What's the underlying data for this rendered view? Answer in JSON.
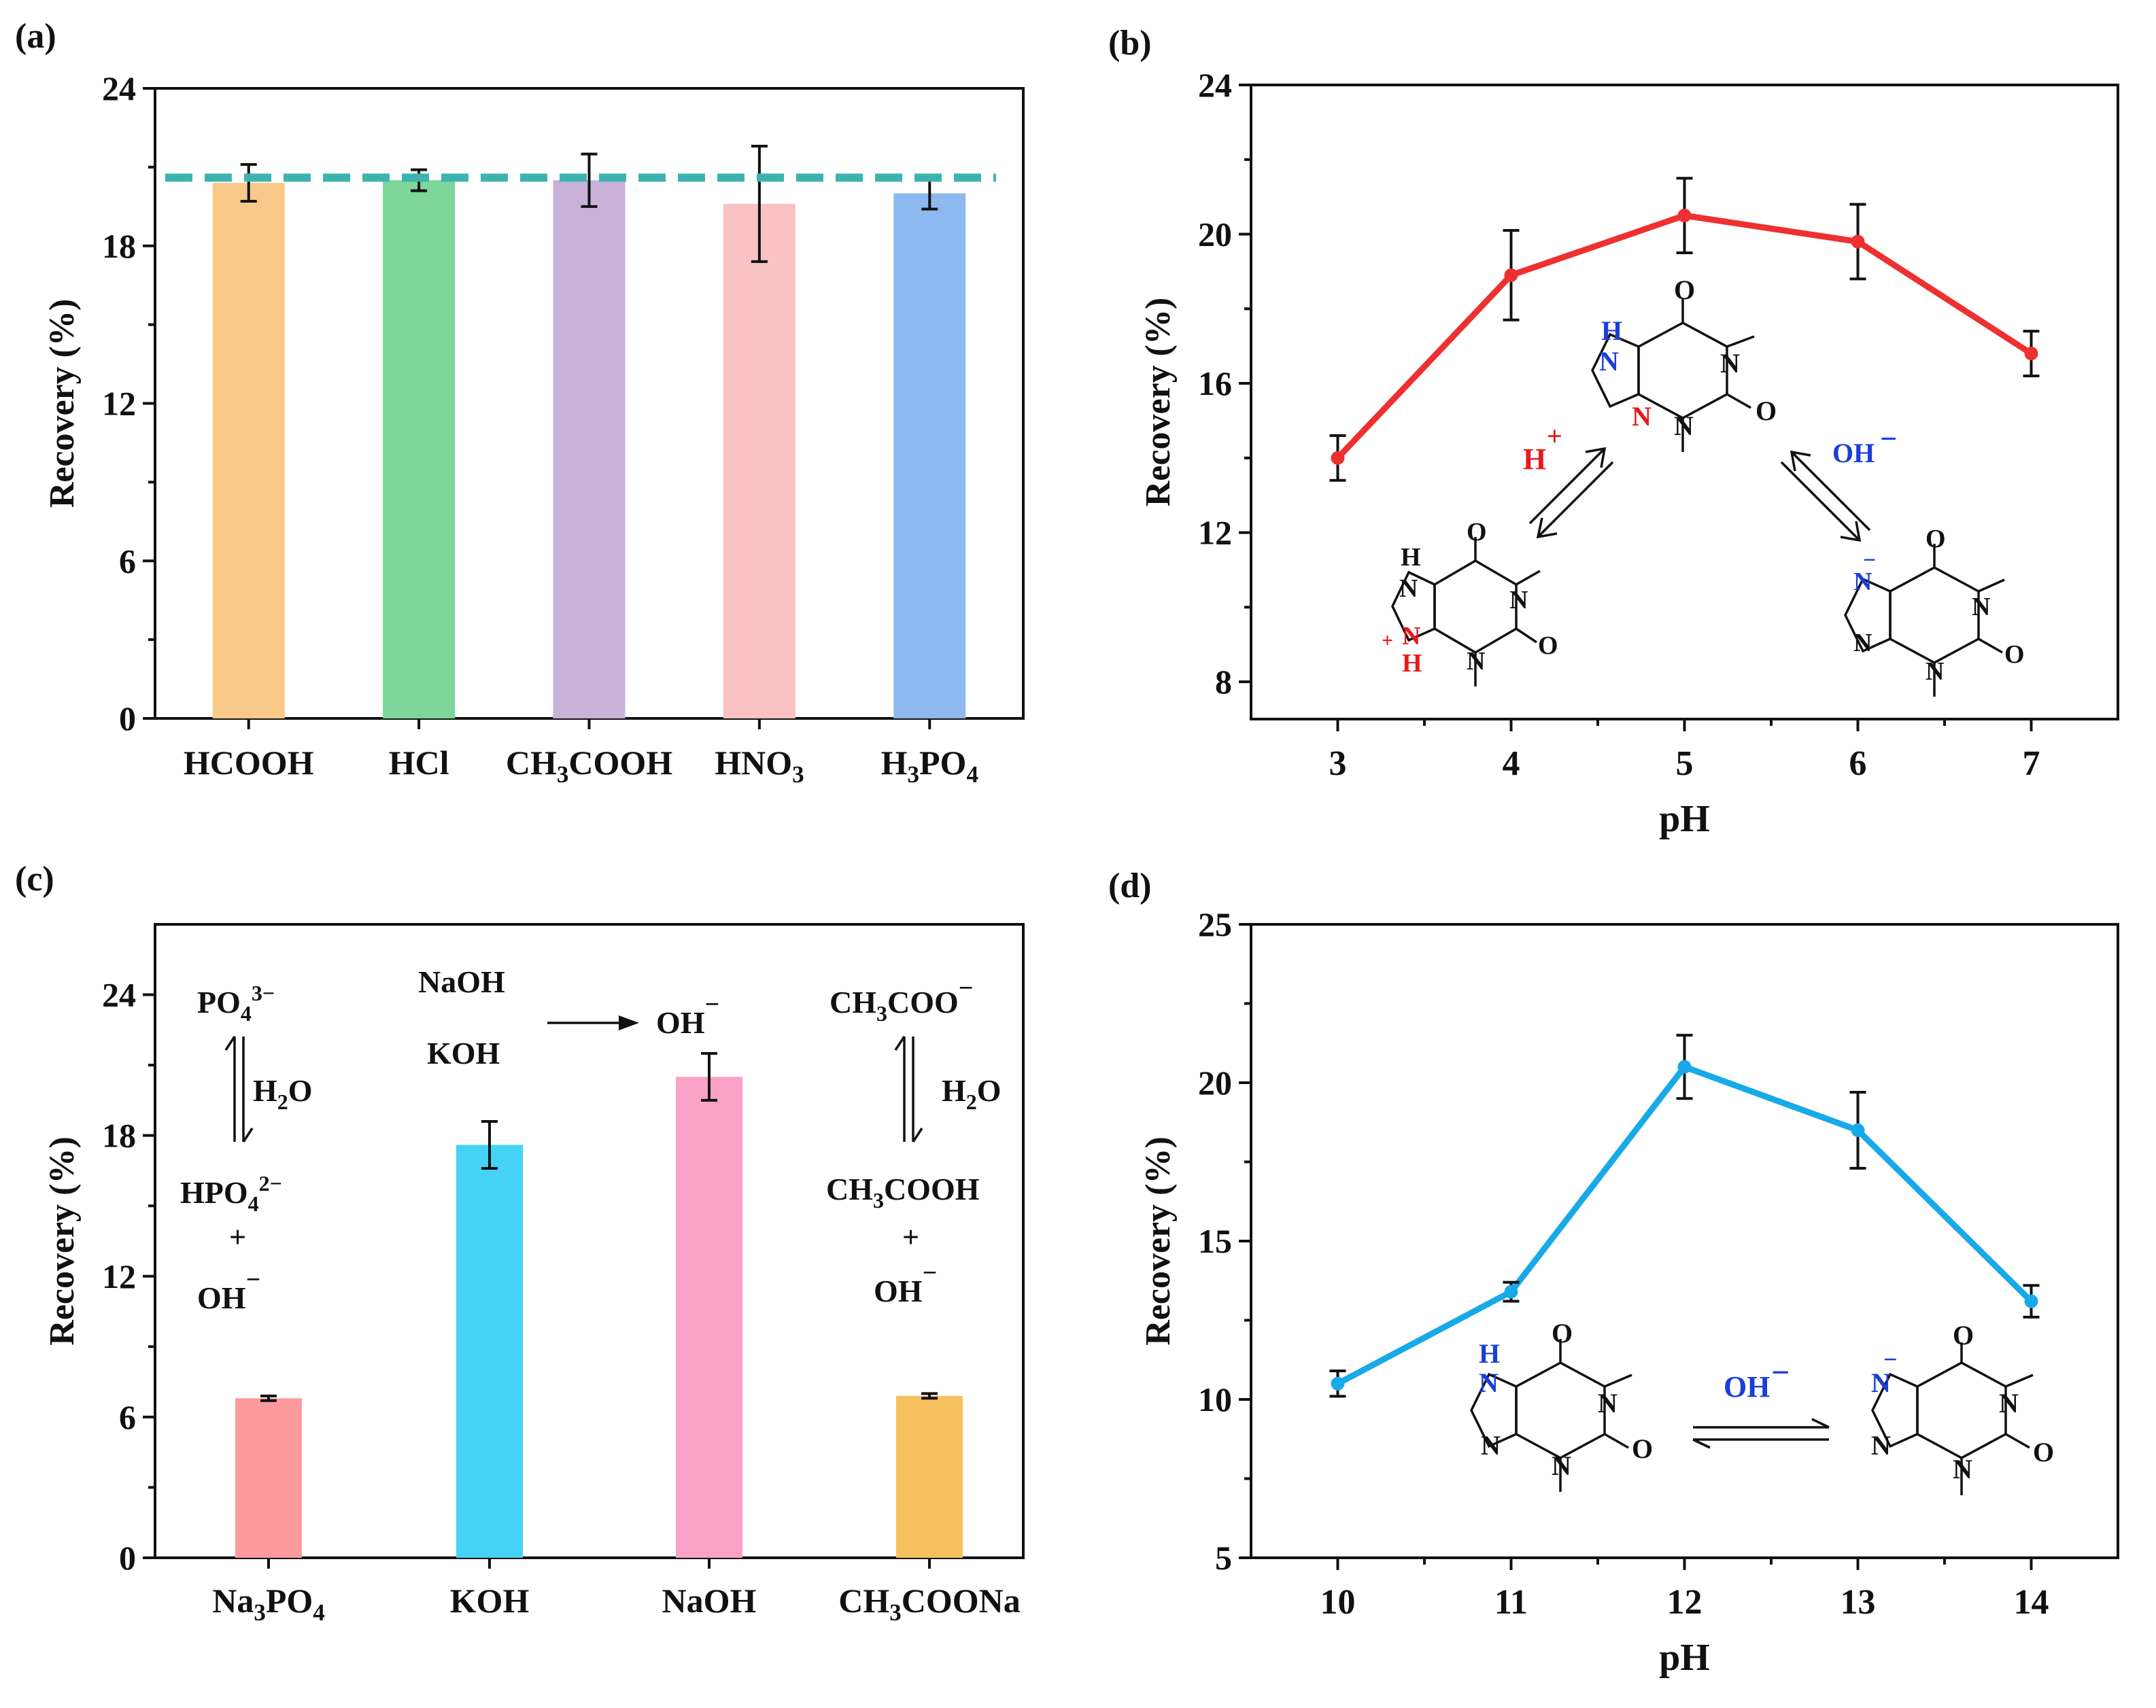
{
  "chart_data": [
    {
      "panel": "(a)",
      "type": "bar",
      "ylabel": "Recovery (%)",
      "ylim": [
        0,
        24
      ],
      "yticks": [
        0,
        6,
        12,
        18,
        24
      ],
      "categories": [
        {
          "main": "HCOOH",
          "sub": ""
        },
        {
          "main": "HCl",
          "sub": ""
        },
        {
          "main": "CH",
          "sub": "3",
          "rest": "COOH"
        },
        {
          "main": "HNO",
          "sub": "3"
        },
        {
          "main": "H",
          "sub": "3",
          "rest": "PO",
          "sub2": "4"
        }
      ],
      "values": [
        20.4,
        20.5,
        20.5,
        19.6,
        20.0
      ],
      "errors": [
        0.7,
        0.4,
        1.0,
        2.2,
        0.6
      ],
      "colors": [
        "#F9C98A",
        "#7DD69A",
        "#C9B1D8",
        "#F9C3C4",
        "#8DB8F0"
      ],
      "reference_line": {
        "value": 20.6,
        "color": "#3DB3B0"
      }
    },
    {
      "panel": "(b)",
      "type": "line",
      "xlabel": "pH",
      "ylabel": "Recovery (%)",
      "ylim": [
        7,
        24
      ],
      "xlim": [
        2.5,
        7.5
      ],
      "x": [
        3,
        4,
        5,
        6,
        7
      ],
      "y": [
        14.0,
        18.9,
        20.5,
        19.8,
        16.8
      ],
      "errors": [
        0.6,
        1.2,
        1.0,
        1.0,
        0.6
      ],
      "xticks": [
        3,
        4,
        5,
        6,
        7
      ],
      "yticks": [
        8,
        12,
        16,
        20,
        24
      ],
      "color": "#EE3030"
    },
    {
      "panel": "(c)",
      "type": "bar",
      "ylabel": "Recovery (%)",
      "ylim": [
        0,
        27
      ],
      "yticks": [
        0,
        6,
        12,
        18,
        24
      ],
      "categories": [
        {
          "main": "Na",
          "sub": "3",
          "rest": "PO",
          "sub2": "4"
        },
        {
          "main": "KOH"
        },
        {
          "main": "NaOH"
        },
        {
          "main": "CH",
          "sub": "3",
          "rest": "COONa"
        }
      ],
      "values": [
        6.8,
        17.6,
        20.5,
        6.9
      ],
      "errors": [
        0.1,
        1.0,
        1.0,
        0.1
      ],
      "colors": [
        "#FC9A9E",
        "#44D2F5",
        "#F9A1C6",
        "#F8C160"
      ]
    },
    {
      "panel": "(d)",
      "type": "line",
      "xlabel": "pH",
      "ylabel": "Recovery (%)",
      "ylim": [
        5,
        25
      ],
      "xlim": [
        9.5,
        14.5
      ],
      "x": [
        10,
        11,
        12,
        13,
        14
      ],
      "y": [
        10.5,
        13.4,
        20.5,
        18.5,
        13.1
      ],
      "errors": [
        0.4,
        0.3,
        1.0,
        1.2,
        0.5
      ],
      "xticks": [
        10,
        11,
        12,
        13,
        14
      ],
      "yticks": [
        5,
        10,
        15,
        20,
        25
      ],
      "color": "#18A9E8"
    }
  ],
  "labels": {
    "h": "H",
    "n": "N",
    "o": "O",
    "plus": "+",
    "minus": "−",
    "h2o": "H",
    "two": "2",
    "three": "3",
    "four": "4",
    "three_minus": "3−",
    "two_minus": "2−",
    "po": "PO",
    "hpo": "HPO",
    "oh": "OH",
    "naoh": "NaOH",
    "koh": "KOH",
    "ch": "CH",
    "coo": "COO",
    "cooh": "COOH"
  },
  "colors": {
    "axis": "#111111",
    "blue_atom": "#1A3FD6",
    "red_atom": "#E8191C"
  }
}
